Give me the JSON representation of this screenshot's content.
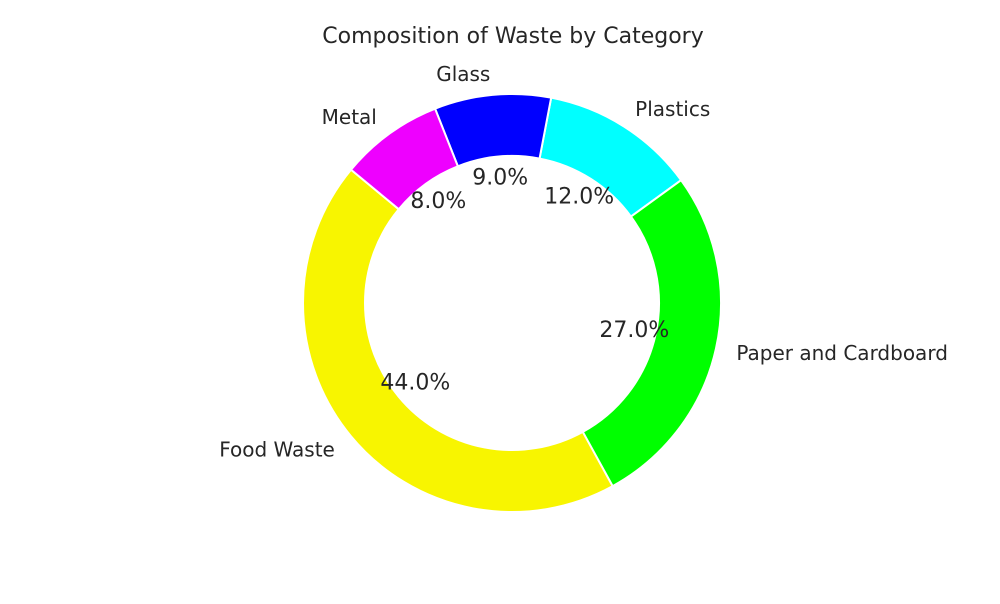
{
  "chart_data": {
    "type": "pie",
    "variant": "donut",
    "title": "Composition of Waste by Category",
    "categories": [
      "Plastics",
      "Glass",
      "Metal",
      "Food Waste",
      "Paper and Cardboard"
    ],
    "values": [
      12.0,
      9.0,
      8.0,
      44.0,
      27.0
    ],
    "percent_labels": [
      "12.0%",
      "9.0%",
      "8.0%",
      "44.0%",
      "27.0%"
    ],
    "colors": [
      "#00ffff",
      "#0000ff",
      "#ee00ff",
      "#f8f500",
      "#00ff00"
    ],
    "start_angle_deg": 36,
    "direction": "counterclockwise",
    "legend": "none"
  }
}
